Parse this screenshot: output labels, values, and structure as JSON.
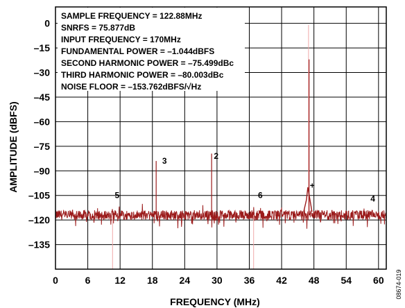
{
  "chart_data": {
    "type": "line",
    "xlabel": "FREQUENCY (MHz)",
    "ylabel": "AMPLITUDE (dBFS)",
    "xlim": [
      0,
      61.44
    ],
    "ylim": [
      -150,
      10
    ],
    "x_ticks": [
      0,
      6,
      12,
      18,
      24,
      30,
      36,
      42,
      48,
      54,
      60
    ],
    "x_tick_labels": [
      "0",
      "6",
      "12",
      "18",
      "24",
      "30",
      "36",
      "42",
      "48",
      "54",
      "60"
    ],
    "y_ticks": [
      0,
      -15,
      -30,
      -45,
      -60,
      -75,
      -90,
      -105,
      -120,
      -135
    ],
    "y_tick_labels": [
      "0",
      "–15",
      "–30",
      "–45",
      "–60",
      "–75",
      "–90",
      "–105",
      "–120",
      "–135"
    ],
    "grid": true,
    "annotations": [
      "SAMPLE FREQUENCY = 122.88MHz",
      "SNRFS = 75.877dB",
      "INPUT FREQUENCY = 170MHz",
      "FUNDAMENTAL POWER = –1.044dBFS",
      "SECOND HARMONIC POWER = –75.499dBc",
      "THIRD HARMONIC POWER = –80.003dBc",
      "NOISE FLOOR = –153.762dBFS/√Hz"
    ],
    "noise_floor_level": -117,
    "spur_markers": [
      {
        "label": "3",
        "x": 19.3
      },
      {
        "label": "2",
        "x": 28.9
      },
      {
        "label": "5",
        "x": 10.5
      },
      {
        "label": "6",
        "x": 37.1
      },
      {
        "label": "4",
        "x": 58.0
      },
      {
        "label": "+",
        "x": 47.5
      }
    ],
    "peaks": [
      {
        "x": 47.0,
        "y": -1.0,
        "style": "faint"
      },
      {
        "x": 47.1,
        "y": -22.0,
        "style": "solid"
      },
      {
        "x": 18.7,
        "y": -84.0,
        "style": "solid"
      },
      {
        "x": 29.0,
        "y": -79.5,
        "style": "solid"
      },
      {
        "x": 10.6,
        "y": -150.0,
        "style": "faint"
      },
      {
        "x": 36.8,
        "y": -150.0,
        "style": "faint"
      },
      {
        "x": 47.0,
        "y": -100.0,
        "style": "skirt"
      }
    ],
    "colors": {
      "trace": "#9b1b1b",
      "faint": "#f0a8a8",
      "grid": "#000000"
    }
  },
  "figure_id": "08674-019"
}
